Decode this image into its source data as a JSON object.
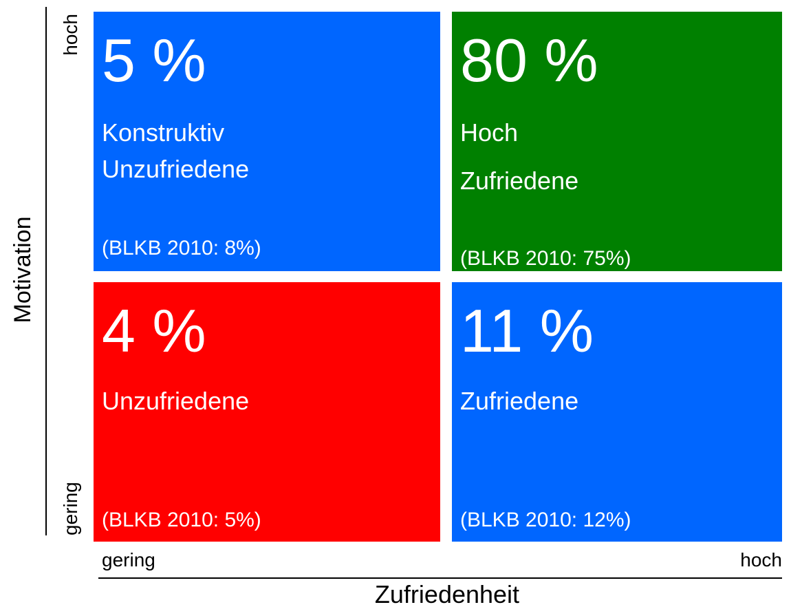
{
  "y_axis": {
    "title": "Motivation",
    "high": "hoch",
    "low": "gering"
  },
  "x_axis": {
    "title": "Zufriedenheit",
    "low": "gering",
    "high": "hoch"
  },
  "quadrants": [
    {
      "percent": "5 %",
      "lines": [
        "Konstruktiv",
        "Unzufriedene"
      ],
      "comparison": "(BLKB 2010: 8%)",
      "color": "#0066ff"
    },
    {
      "percent": "80 %",
      "lines": [
        "Hoch",
        "Zufriedene"
      ],
      "comparison": "(BLKB 2010: 75%)",
      "color": "#008000"
    },
    {
      "percent": "4 %",
      "lines": [
        "Unzufriedene"
      ],
      "comparison": "(BLKB 2010: 5%)",
      "color": "#ff0000"
    },
    {
      "percent": "11 %",
      "lines": [
        "Zufriedene"
      ],
      "comparison": "(BLKB 2010: 12%)",
      "color": "#0066ff"
    }
  ]
}
